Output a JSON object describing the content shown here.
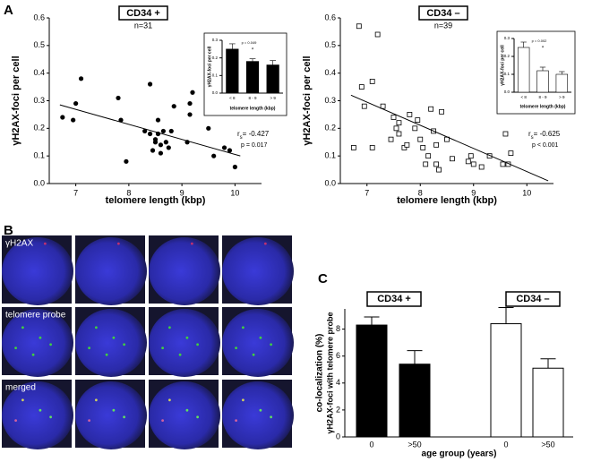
{
  "panels": [
    "A",
    "B",
    "C"
  ],
  "microscopy": {
    "rows": [
      "γH2AX",
      "telomere probe",
      "merged"
    ]
  },
  "chart_data": [
    {
      "type": "scatter",
      "title": "CD34 +",
      "subtitle": "n=31",
      "x_label": "telomere length (kbp)",
      "y_label": "γH2AX-foci per cell",
      "marker": "circle",
      "color": "#000000",
      "x": [
        6.75,
        6.95,
        7.0,
        7.1,
        7.8,
        7.85,
        7.95,
        8.3,
        8.4,
        8.45,
        8.4,
        8.5,
        8.55,
        8.6,
        8.6,
        8.65,
        8.7,
        8.75,
        8.8,
        8.85,
        8.55,
        9.1,
        9.15,
        9.2,
        9.5,
        9.6,
        9.8,
        9.9,
        10.0,
        8.5,
        9.15
      ],
      "values": [
        0.24,
        0.23,
        0.29,
        0.38,
        0.31,
        0.23,
        0.08,
        0.19,
        0.36,
        0.12,
        0.18,
        0.15,
        0.18,
        0.14,
        0.11,
        0.19,
        0.15,
        0.13,
        0.19,
        0.28,
        0.23,
        0.15,
        0.25,
        0.33,
        0.2,
        0.1,
        0.13,
        0.12,
        0.06,
        0.16,
        0.29
      ],
      "fit_line": {
        "x": [
          6.7,
          10.1
        ],
        "y": [
          0.285,
          0.1
        ]
      },
      "annotation": {
        "r": "r",
        "sub": "s",
        "r_text": "= -0.427",
        "p": "p = 0.017"
      },
      "xlim": [
        6.5,
        10.5
      ],
      "xticks": [
        7,
        8,
        9,
        10
      ],
      "ylim": [
        0,
        0.6
      ],
      "yticks": [
        {
          "value": 0,
          "label": "0.0"
        },
        0.1,
        0.2,
        0.3,
        0.4,
        0.5,
        0.6
      ]
    },
    {
      "type": "bar",
      "x_label": "telomere length (kbp)",
      "y_label": "γH2AX-foci per cell",
      "categories": [
        "< 8",
        "8 - 9",
        "> 9"
      ],
      "series": [
        {
          "color": "#000000",
          "values": [
            0.25,
            0.18,
            0.16
          ],
          "errors": [
            0.03,
            0.015,
            0.025
          ]
        }
      ],
      "annotation": {
        "p": "p = 0.049",
        "star": "*"
      },
      "ylim": [
        0,
        0.3
      ],
      "yticks": [
        {
          "value": 0,
          "label": "0.0"
        },
        0.1,
        0.2,
        0.3
      ]
    },
    {
      "type": "scatter",
      "title": "CD34 –",
      "subtitle": "n=39",
      "x_label": "telomere length (kbp)",
      "y_label": "γH2AX-foci per cell",
      "marker": "square",
      "color": "#000000",
      "x": [
        6.85,
        7.2,
        6.9,
        6.95,
        7.1,
        7.1,
        6.75,
        7.3,
        7.5,
        7.55,
        7.6,
        7.6,
        7.45,
        7.7,
        7.75,
        7.8,
        7.9,
        7.95,
        8.0,
        8.05,
        8.15,
        8.2,
        8.25,
        8.3,
        8.1,
        8.3,
        8.4,
        8.5,
        8.6,
        8.35,
        8.9,
        8.95,
        9.0,
        9.15,
        9.3,
        9.55,
        9.6,
        9.65,
        9.7
      ],
      "values": [
        0.57,
        0.54,
        0.35,
        0.28,
        0.37,
        0.13,
        0.13,
        0.28,
        0.24,
        0.2,
        0.18,
        0.22,
        0.16,
        0.13,
        0.14,
        0.25,
        0.2,
        0.23,
        0.16,
        0.13,
        0.1,
        0.27,
        0.19,
        0.14,
        0.07,
        0.07,
        0.26,
        0.16,
        0.09,
        0.05,
        0.08,
        0.1,
        0.07,
        0.06,
        0.1,
        0.07,
        0.18,
        0.07,
        0.11
      ],
      "fit_line": {
        "x": [
          6.7,
          10.4
        ],
        "y": [
          0.32,
          0.01
        ]
      },
      "annotation": {
        "r": "r",
        "sub": "s",
        "r_text": "= -0.625",
        "p": "p < 0.001"
      },
      "xlim": [
        6.5,
        10.5
      ],
      "xticks": [
        7,
        8,
        9,
        10
      ],
      "ylim": [
        0,
        0.6
      ],
      "yticks": [
        {
          "value": 0,
          "label": "0.0"
        },
        0.1,
        0.2,
        0.3,
        0.4,
        0.5,
        0.6
      ]
    },
    {
      "type": "bar",
      "x_label": "telomere length (kbp)",
      "y_label": "γH2AX-foci per cell",
      "categories": [
        "< 8",
        "8 - 9",
        "> 9"
      ],
      "series": [
        {
          "color": "#ffffff",
          "values": [
            0.25,
            0.12,
            0.1
          ],
          "errors": [
            0.03,
            0.02,
            0.015
          ]
        }
      ],
      "annotation": {
        "p": "p = 0.002",
        "star": "*"
      },
      "ylim": [
        0,
        0.3
      ],
      "yticks": [
        {
          "value": 0,
          "label": "0.0"
        },
        0.1,
        0.2,
        0.3
      ]
    },
    {
      "type": "bar",
      "x_label": "age group (years)",
      "y_label": "co-localization (%)",
      "y_label2": "γH2AX-foci with telomere probe",
      "categories": [
        "0",
        ">50",
        "0",
        ">50"
      ],
      "series": [
        {
          "name": "CD34 +",
          "color": "#000000",
          "values": [
            8.3,
            5.4,
            null,
            null
          ],
          "errors": [
            0.6,
            1.0,
            null,
            null
          ]
        },
        {
          "name": "CD34 –",
          "color": "#ffffff",
          "values": [
            null,
            null,
            8.4,
            5.1
          ],
          "errors": [
            null,
            null,
            1.2,
            0.7
          ]
        }
      ],
      "ylim": [
        0,
        9.5
      ],
      "yticks": [
        0,
        2,
        4,
        6,
        8
      ]
    }
  ]
}
